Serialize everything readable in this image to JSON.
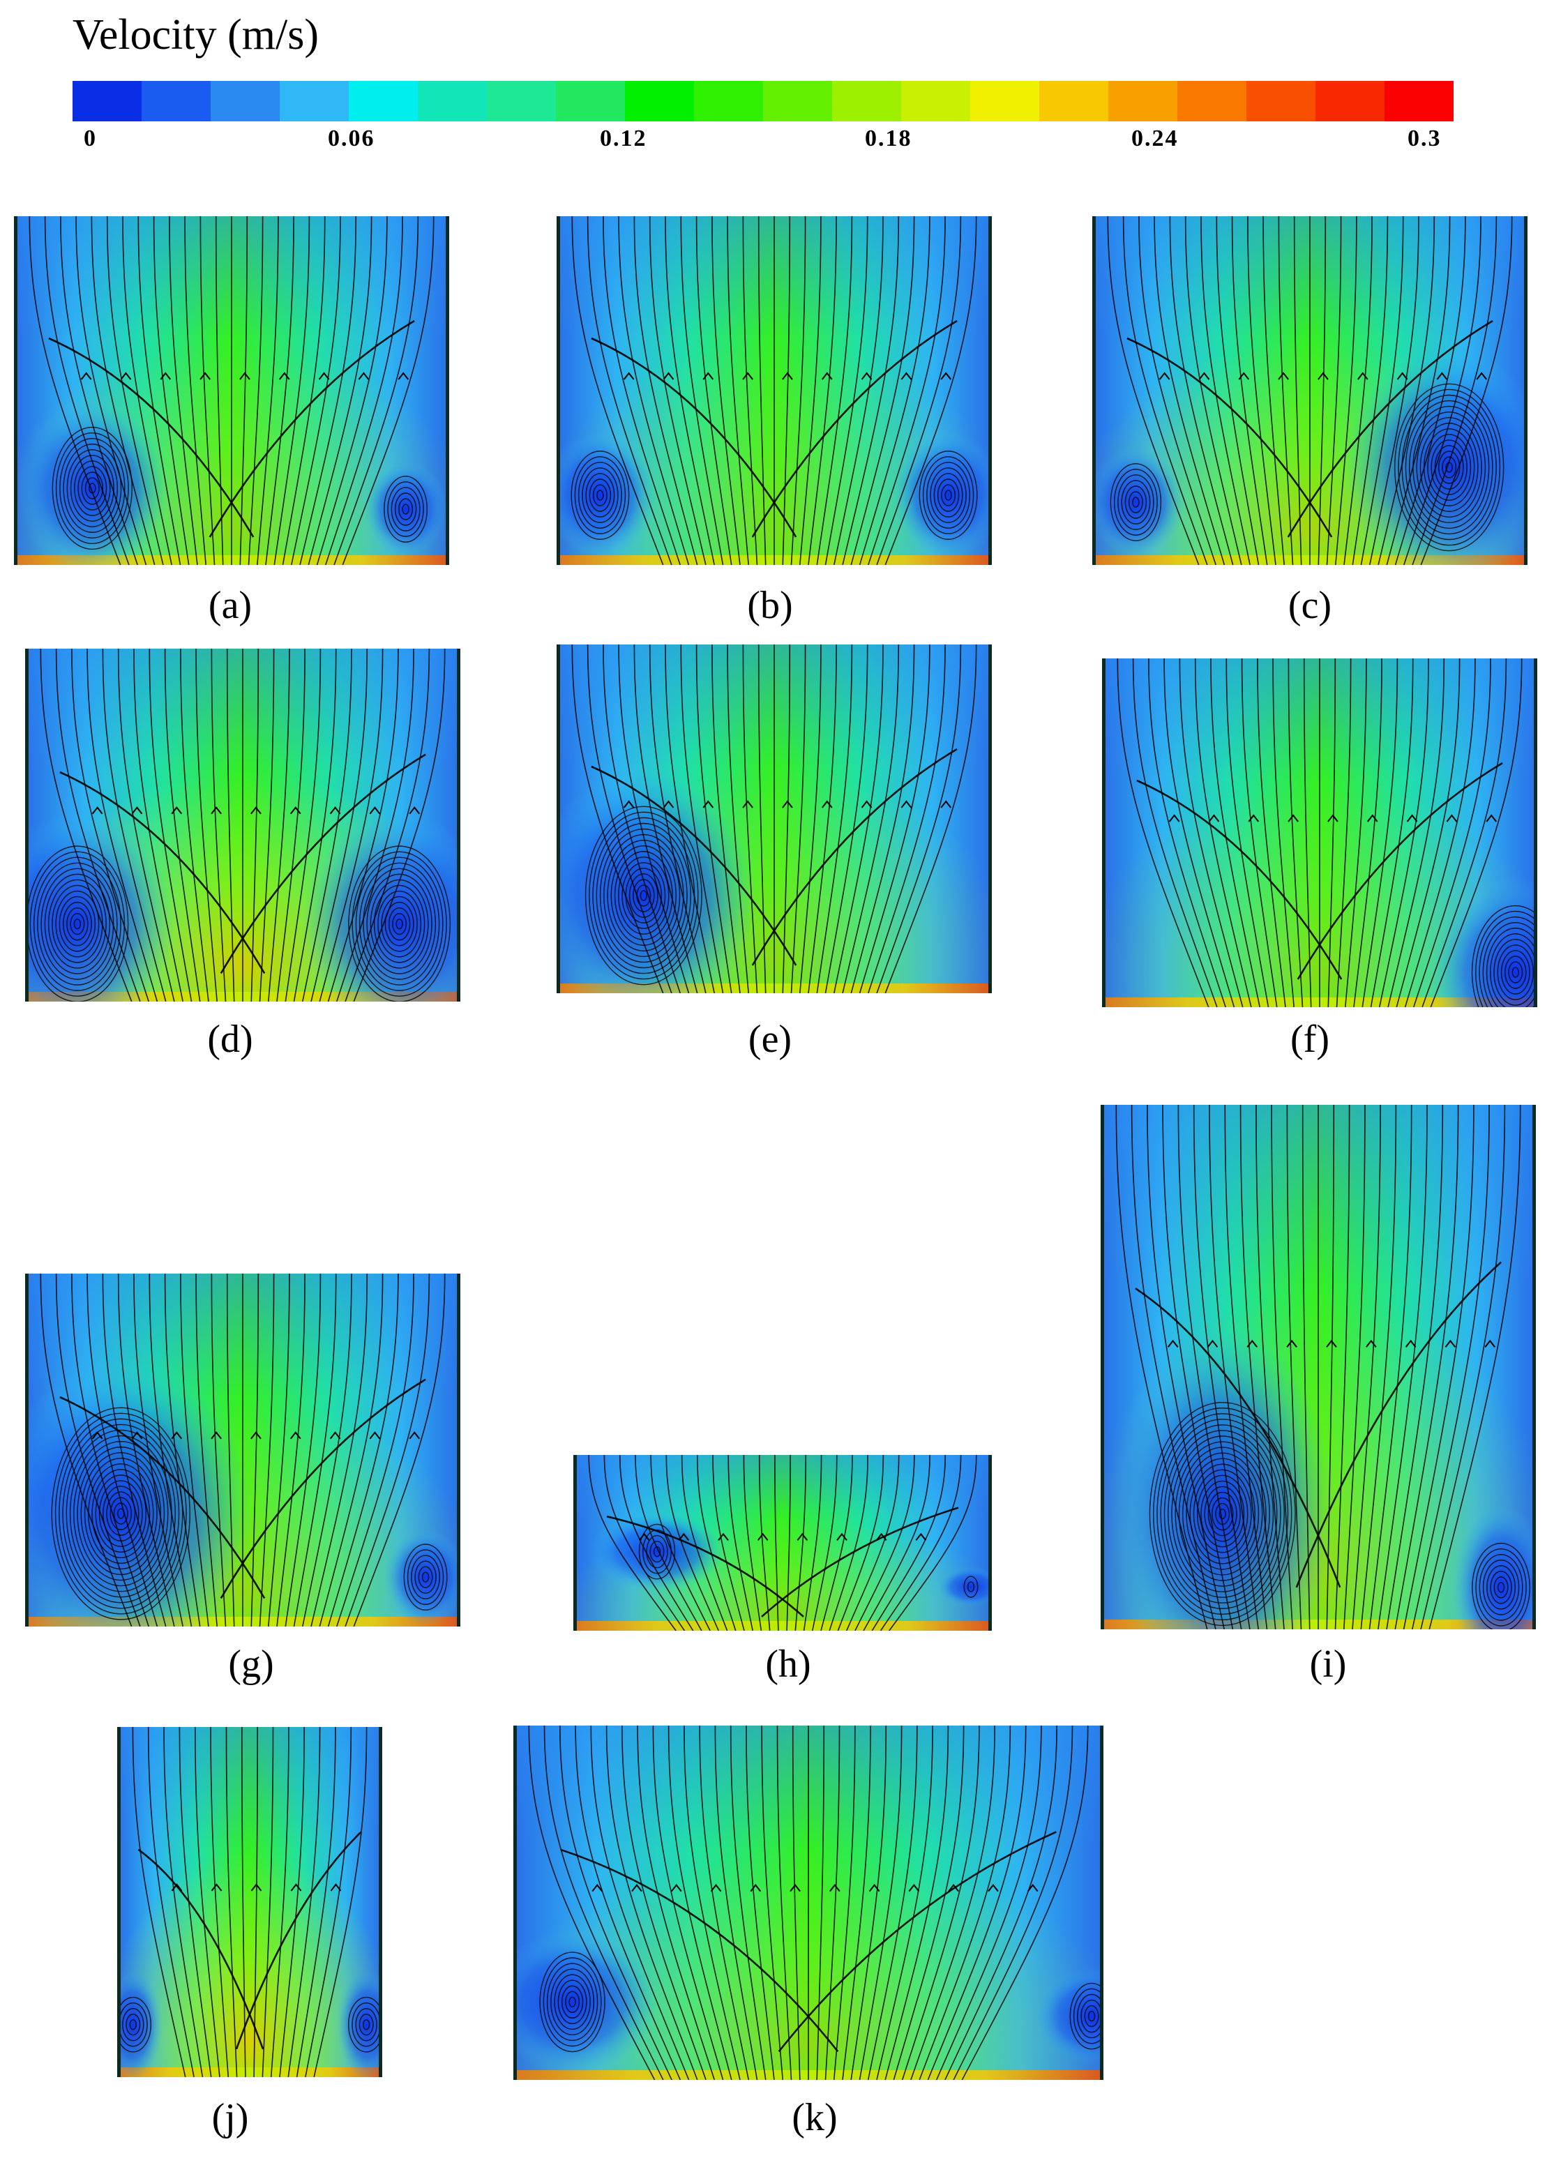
{
  "legend": {
    "title": "Velocity (m/s)",
    "ticks": [
      "0",
      "0.06",
      "0.12",
      "0.18",
      "0.24",
      "0.3"
    ],
    "min": 0,
    "max": 0.3,
    "colors": [
      "#0a2ee6",
      "#1a5cf0",
      "#2a8af2",
      "#2fb8f5",
      "#00eeee",
      "#10e6b8",
      "#1ee896",
      "#22e860",
      "#00f000",
      "#2ef000",
      "#62f000",
      "#9cf000",
      "#c8f000",
      "#f0f000",
      "#f8c800",
      "#f8a000",
      "#f87800",
      "#f85000",
      "#f82800",
      "#fa0000"
    ]
  },
  "panels": [
    {
      "id": "a",
      "caption": "(a)"
    },
    {
      "id": "b",
      "caption": "(b)"
    },
    {
      "id": "c",
      "caption": "(c)"
    },
    {
      "id": "d",
      "caption": "(d)"
    },
    {
      "id": "e",
      "caption": "(e)"
    },
    {
      "id": "f",
      "caption": "(f)"
    },
    {
      "id": "g",
      "caption": "(g)"
    },
    {
      "id": "h",
      "caption": "(h)"
    },
    {
      "id": "i",
      "caption": "(i)"
    },
    {
      "id": "j",
      "caption": "(j)"
    },
    {
      "id": "k",
      "caption": "(k)"
    }
  ]
}
